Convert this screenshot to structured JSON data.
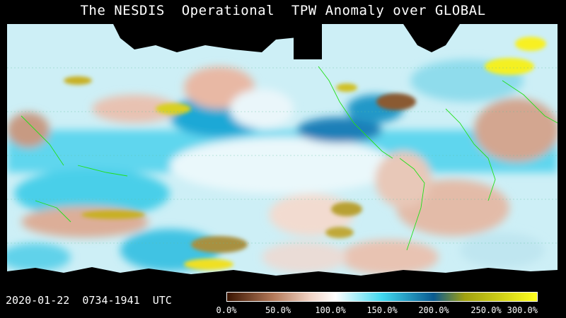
{
  "title": "The NESDIS  Operational  TPW Anomaly over GLOBAL",
  "timestamp": "2020-01-22  0734-1941  UTC",
  "colorbar": {
    "stops": [
      {
        "value": 0,
        "color": "#3a1400"
      },
      {
        "value": 45,
        "color": "#b47a5a"
      },
      {
        "value": 80,
        "color": "#f0d2c4"
      },
      {
        "value": 105,
        "color": "#ffffff"
      },
      {
        "value": 150,
        "color": "#40d8ef"
      },
      {
        "value": 200,
        "color": "#0a5a90"
      },
      {
        "value": 230,
        "color": "#a0a010"
      },
      {
        "value": 300,
        "color": "#ffff20"
      }
    ],
    "ticks": [
      "0.0%",
      "50.0%",
      "100.0%",
      "150.0%",
      "200.0%",
      "250.0%",
      "300.0%"
    ]
  }
}
